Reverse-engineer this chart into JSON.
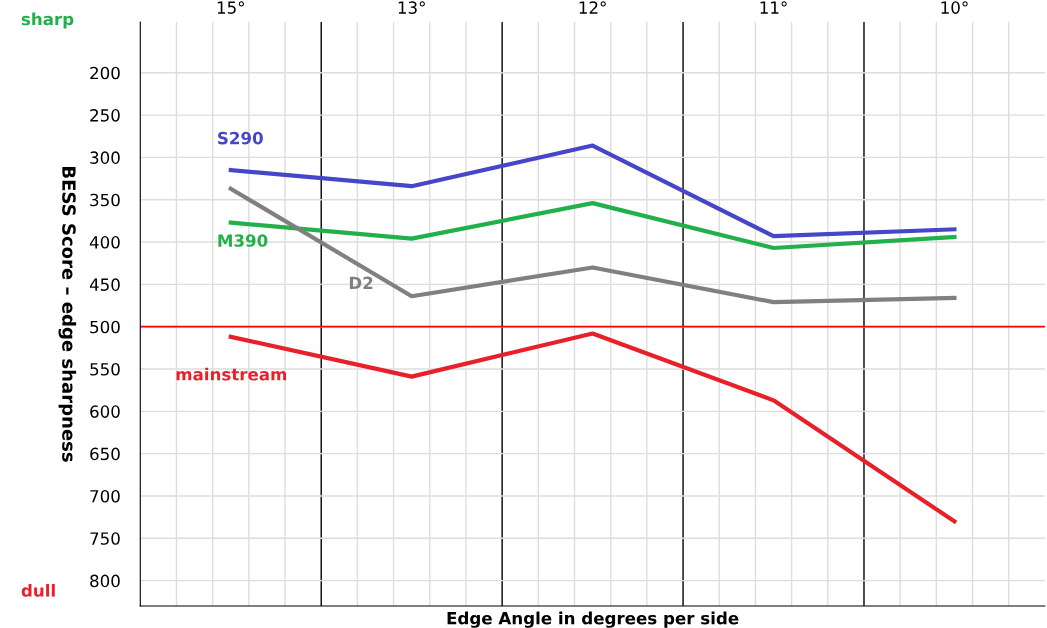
{
  "chart_data": {
    "type": "line",
    "categories": [
      "15°",
      "13°",
      "12°",
      "11°",
      "10°"
    ],
    "series": [
      {
        "name": "S290",
        "color": "#4646c8",
        "values": [
          315,
          334,
          286,
          393,
          385
        ]
      },
      {
        "name": "M390",
        "color": "#22b04a",
        "values": [
          377,
          396,
          354,
          407,
          394
        ]
      },
      {
        "name": "D2",
        "color": "#808080",
        "values": [
          337,
          464,
          430,
          471,
          466
        ]
      },
      {
        "name": "mainstream",
        "color": "#e8202a",
        "values": [
          512,
          559,
          508,
          587,
          730
        ]
      }
    ],
    "ylabel": "BESS Score – edge sharpness",
    "xlabel": "Edge Angle in degrees per side",
    "ylim": [
      830,
      140
    ],
    "yticks": [
      200,
      250,
      300,
      350,
      400,
      450,
      500,
      550,
      600,
      650,
      700,
      750,
      800
    ],
    "ref_lines": [
      {
        "axis": "y",
        "value": 500,
        "color": "#ff0000"
      }
    ],
    "annotations": [
      "sharp",
      "dull"
    ],
    "grid": true,
    "marker": "none",
    "line_style": "solid",
    "legend": false
  }
}
